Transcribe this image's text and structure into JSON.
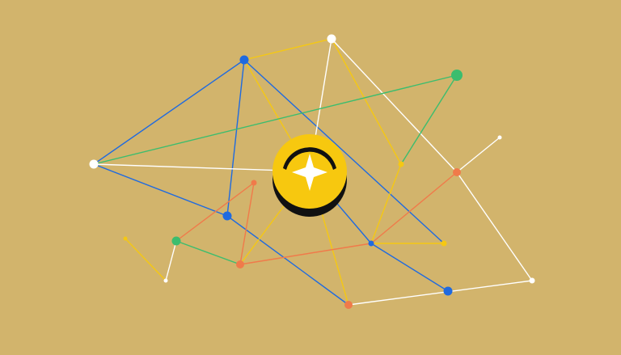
{
  "colors": {
    "background": "#d2b46c",
    "blue": "#1f6ae0",
    "yellow": "#f5c813",
    "white": "#ffffff",
    "green": "#3bbd6e",
    "orange": "#f07a4a",
    "coin": "#f7c80f",
    "coin_shadow": "#111111"
  },
  "icons": {
    "center": "four-point-star-coin-icon"
  }
}
